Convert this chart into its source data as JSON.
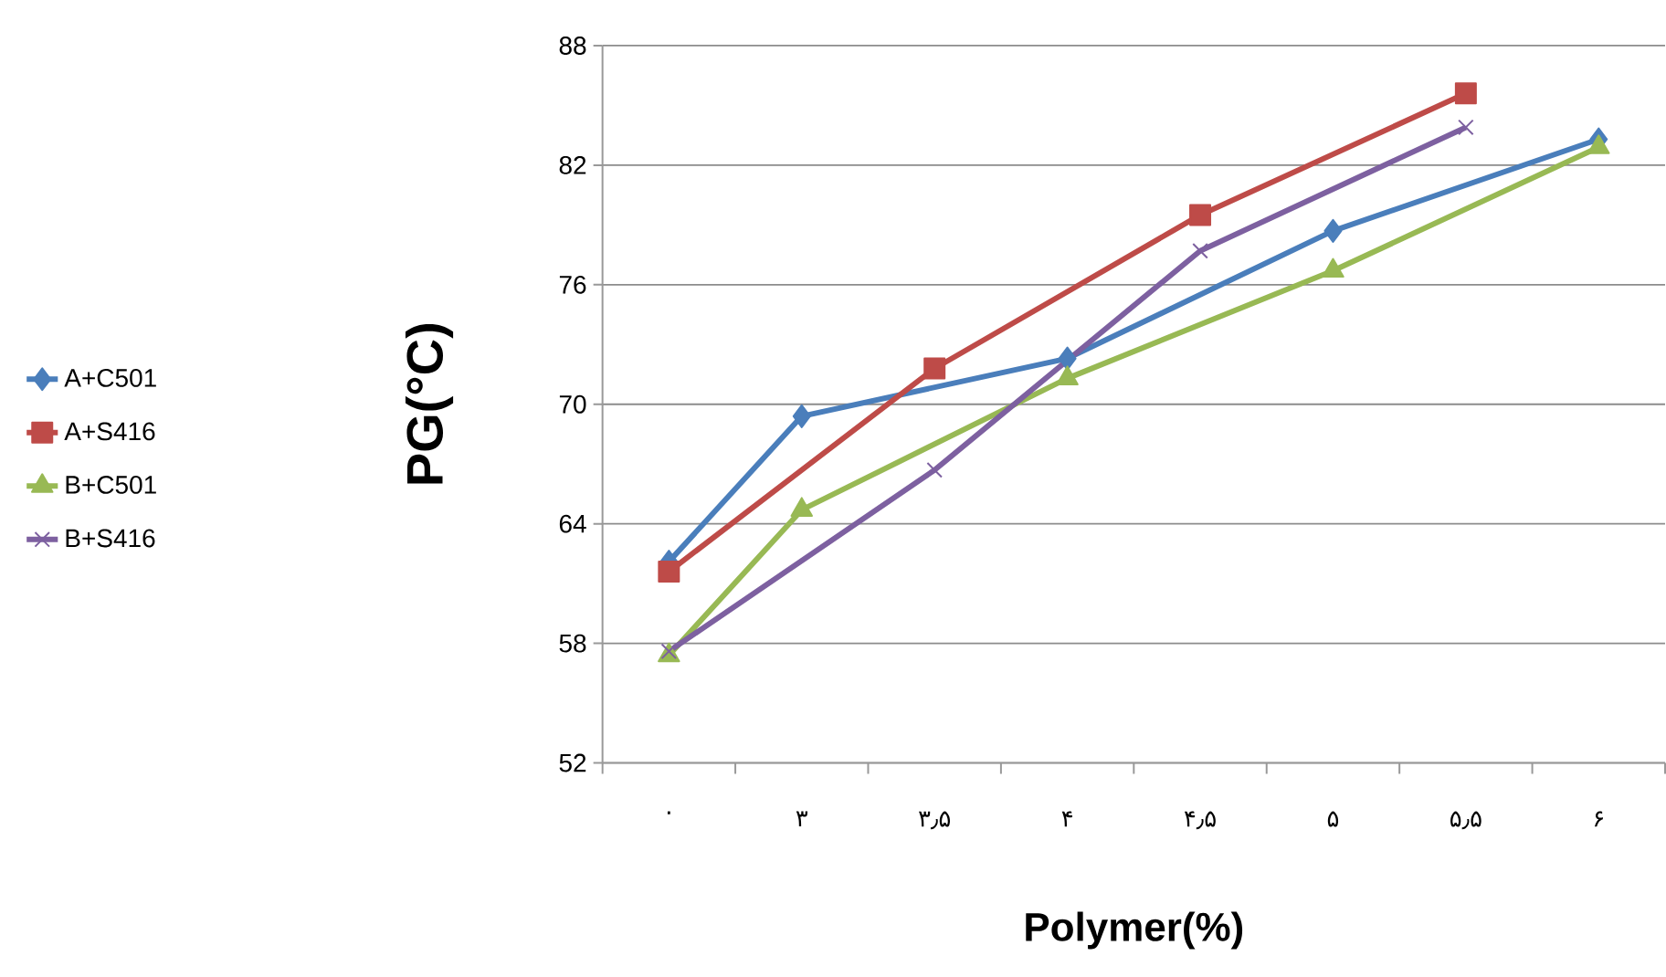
{
  "chart_data": {
    "type": "line",
    "xlabel": "Polymer(%)",
    "ylabel": "PG(°C)",
    "categories": [
      "۰",
      "۳",
      "۳٫۵",
      "۴",
      "۴٫۵",
      "۵",
      "۵٫۵",
      "۶"
    ],
    "ylim": [
      52,
      88
    ],
    "yticks": [
      52,
      58,
      64,
      70,
      76,
      82,
      88
    ],
    "grid": "y",
    "legend": "left",
    "series": [
      {
        "name": "A+C501",
        "color": "#4a7ebb",
        "marker": "diamond",
        "values": [
          62.1,
          69.4,
          null,
          72.3,
          null,
          78.7,
          null,
          83.3
        ]
      },
      {
        "name": "A+S416",
        "color": "#be4b48",
        "marker": "square",
        "values": [
          61.6,
          null,
          71.8,
          null,
          79.5,
          null,
          85.6,
          null
        ]
      },
      {
        "name": "B+C501",
        "color": "#98b954",
        "marker": "triangle",
        "values": [
          57.4,
          64.7,
          null,
          71.3,
          null,
          76.7,
          null,
          82.9
        ]
      },
      {
        "name": "B+S416",
        "color": "#7d60a0",
        "marker": "cross",
        "values": [
          57.6,
          null,
          66.7,
          null,
          77.7,
          null,
          83.9,
          null
        ]
      }
    ]
  }
}
